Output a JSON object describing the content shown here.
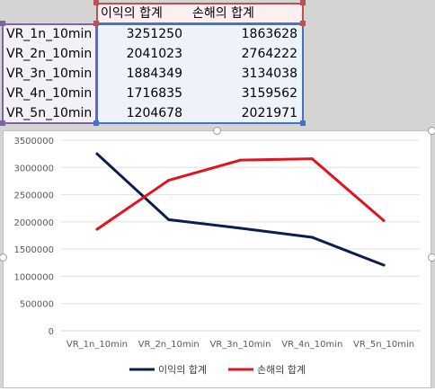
{
  "sheet": {
    "headers": [
      "이익의 합계",
      "손해의 합계"
    ],
    "rows": [
      {
        "label": "VR_1n_10min",
        "profit": "3251250",
        "loss": "1863628"
      },
      {
        "label": "VR_2n_10min",
        "profit": "2041023",
        "loss": "2764222"
      },
      {
        "label": "VR_3n_10min",
        "profit": "1884349",
        "loss": "3134038"
      },
      {
        "label": "VR_4n_10min",
        "profit": "1716835",
        "loss": "3159562"
      },
      {
        "label": "VR_5n_10min",
        "profit": "1204678",
        "loss": "2021971"
      }
    ],
    "colors": {
      "label_range": "#7e57a8",
      "header_range": "#c0504d",
      "value_range": "#4472c4"
    }
  },
  "chart_data": {
    "type": "line",
    "categories": [
      "VR_1n_10min",
      "VR_2n_10min",
      "VR_3n_10min",
      "VR_4n_10min",
      "VR_5n_10min"
    ],
    "series": [
      {
        "name": "이익의 합계",
        "values": [
          3251250,
          2041023,
          1884349,
          1716835,
          1204678
        ],
        "color": "#0d1e4e"
      },
      {
        "name": "손해의 합계",
        "values": [
          1863628,
          2764222,
          3134038,
          3159562,
          2021971
        ],
        "color": "#e0141e"
      }
    ],
    "yticks": [
      "3500000",
      "3000000",
      "2500000",
      "2000000",
      "1500000",
      "1000000",
      "500000",
      "0"
    ],
    "ylim": [
      0,
      3500000
    ],
    "legend": "bottom",
    "grid": true
  }
}
